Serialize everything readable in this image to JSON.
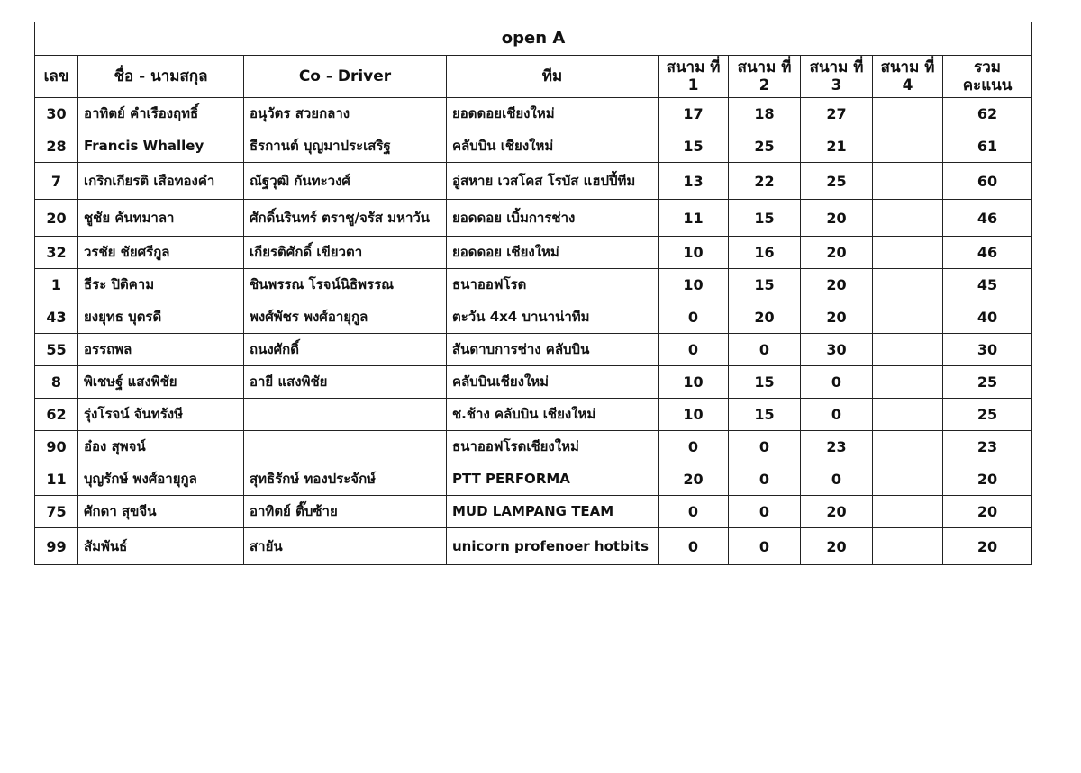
{
  "title": "open A",
  "headers": {
    "number": "เลข",
    "name": "ชื่อ - นามสกุล",
    "co_driver": "Co - Driver",
    "team": "ทีม",
    "stage1": "สนาม ที่ 1",
    "stage2": "สนาม ที่ 2",
    "stage3": "สนาม ที่ 3",
    "stage4": "สนาม ที่ 4",
    "total": "รวม คะแนน"
  },
  "rows": [
    {
      "no": "30",
      "name": "อาทิตย์  คำเรืองฤทธิ์",
      "co": "อนุวัตร  สวยกลาง",
      "team": "ยอดดอยเชียงใหม่",
      "s1": "17",
      "s2": "18",
      "s3": "27",
      "s4": "",
      "total": "62"
    },
    {
      "no": "28",
      "name": "Francis Whalley",
      "co": "ธีรกานต์ บุญมาประเสริฐ",
      "team": "คลับบิน เชียงใหม่",
      "s1": "15",
      "s2": "25",
      "s3": "21",
      "s4": "",
      "total": "61"
    },
    {
      "no": "7",
      "name": "เกริกเกียรติ เสือทองคำ",
      "co": "ณัฐวุฒิ กันทะวงศ์",
      "team": "อู่สหาย เวสโคส โรบัส แฮปปี้ทีม",
      "s1": "13",
      "s2": "22",
      "s3": "25",
      "s4": "",
      "total": "60"
    },
    {
      "no": "20",
      "name": "ชูชัย คันทมาลา",
      "co": "ศักดิ์นรินทร์ ตราชู/จรัส มหาวัน",
      "team": "ยอดดอย เบิ้มการช่าง",
      "s1": "11",
      "s2": "15",
      "s3": "20",
      "s4": "",
      "total": "46"
    },
    {
      "no": "32",
      "name": "วรชัย ชัยศรีกูล",
      "co": "เกียรติศักดิ์ เขียวตา",
      "team": "ยอดดอย เชียงใหม่",
      "s1": "10",
      "s2": "16",
      "s3": "20",
      "s4": "",
      "total": "46"
    },
    {
      "no": "1",
      "name": "ธีระ ปิติคาม",
      "co": "ชินพรรณ โรจน์นิธิพรรณ",
      "team": "ธนาออฟโรด",
      "s1": "10",
      "s2": "15",
      "s3": "20",
      "s4": "",
      "total": "45"
    },
    {
      "no": "43",
      "name": "ยงยุทธ  บุตรดี",
      "co": "พงศ์พัชร พงศ์อายุกูล",
      "team": "ตะวัน 4x4 บานาน่าทีม",
      "s1": "0",
      "s2": "20",
      "s3": "20",
      "s4": "",
      "total": "40"
    },
    {
      "no": "55",
      "name": "อรรถพล",
      "co": "ถนงศักดิ์",
      "team": "สันดาบการช่าง คลับบิน",
      "s1": "0",
      "s2": "0",
      "s3": "30",
      "s4": "",
      "total": "30"
    },
    {
      "no": "8",
      "name": "พิเชษฐ์ แสงพิชัย",
      "co": "อายี แสงพิชัย",
      "team": "คลับบินเชียงใหม่",
      "s1": "10",
      "s2": "15",
      "s3": "0",
      "s4": "",
      "total": "25"
    },
    {
      "no": "62",
      "name": "รุ่งโรจน์ จันทรังษี",
      "co": "",
      "team": "ช.ช้าง คลับบิน เชียงใหม่",
      "s1": "10",
      "s2": "15",
      "s3": "0",
      "s4": "",
      "total": "25"
    },
    {
      "no": "90",
      "name": "อ๋อง  สุพจน์",
      "co": "",
      "team": "ธนาออฟโรดเชียงใหม่",
      "s1": "0",
      "s2": "0",
      "s3": "23",
      "s4": "",
      "total": "23"
    },
    {
      "no": "11",
      "name": "บุญรักษ์  พงศ์อายุกูล",
      "co": "สุทธิรักษ์  ทองประจักษ์",
      "team": "PTT PERFORMA",
      "s1": "20",
      "s2": "0",
      "s3": "0",
      "s4": "",
      "total": "20"
    },
    {
      "no": "75",
      "name": "ศักดา สุขจีน",
      "co": "อาทิตย์ ติ๊บซ้าย",
      "team": "MUD LAMPANG TEAM",
      "s1": "0",
      "s2": "0",
      "s3": "20",
      "s4": "",
      "total": "20"
    },
    {
      "no": "99",
      "name": "สัมพันธ์",
      "co": "สายัน",
      "team": "unicorn profenoer hotbits",
      "s1": "0",
      "s2": "0",
      "s3": "20",
      "s4": "",
      "total": "20"
    }
  ]
}
